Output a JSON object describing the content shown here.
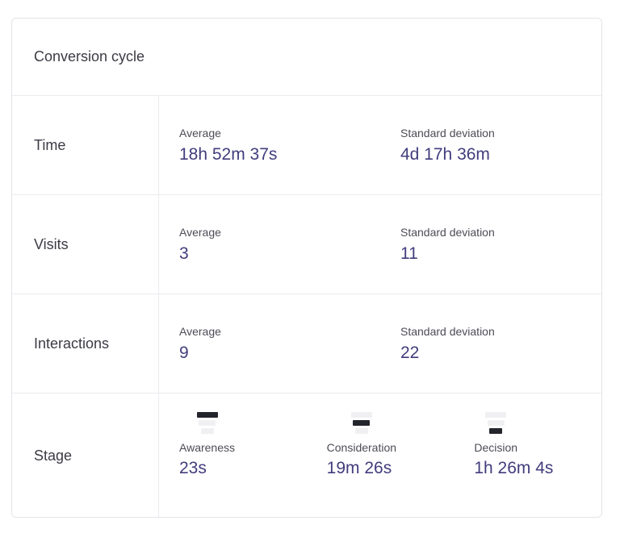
{
  "colors": {
    "accent_value": "#413d7d",
    "text_primary": "#3b3b45",
    "text_secondary": "#4c4c56",
    "border": "#e4e4ea",
    "divider": "#ebebf0",
    "funnel_active": "#23242c",
    "funnel_inactive": "#f0f0f2"
  },
  "card": {
    "title": "Conversion cycle",
    "metric_rows": [
      {
        "label": "Time",
        "average": {
          "label": "Average",
          "value": "18h 52m 37s"
        },
        "std": {
          "label": "Standard deviation",
          "value": "4d 17h 36m"
        }
      },
      {
        "label": "Visits",
        "average": {
          "label": "Average",
          "value": "3"
        },
        "std": {
          "label": "Standard deviation",
          "value": "11"
        }
      },
      {
        "label": "Interactions",
        "average": {
          "label": "Average",
          "value": "9"
        },
        "std": {
          "label": "Standard deviation",
          "value": "22"
        }
      }
    ],
    "stage_row": {
      "label": "Stage",
      "stages": [
        {
          "icon": "funnel-top-segment-icon",
          "label": "Awareness",
          "value": "23s"
        },
        {
          "icon": "funnel-middle-segment-icon",
          "label": "Consideration",
          "value": "19m 26s"
        },
        {
          "icon": "funnel-bottom-segment-icon",
          "label": "Decision",
          "value": "1h 26m 4s"
        }
      ]
    }
  }
}
